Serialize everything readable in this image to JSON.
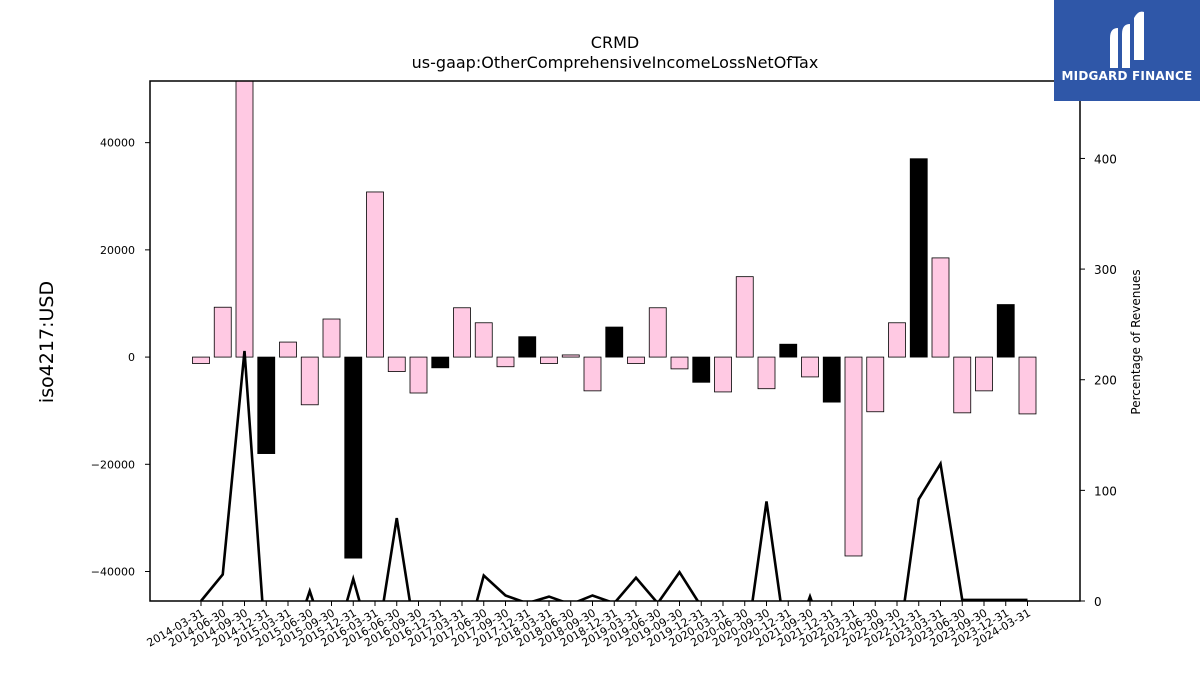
{
  "chart_data": {
    "type": "bar",
    "title": "CRMD",
    "subtitle": "us-gaap:OtherComprehensiveIncomeLossNetOfTax",
    "ylabel": "iso4217:USD",
    "ylabel_right": "Percentage of Revenues",
    "ylim": [
      -45500,
      51500
    ],
    "ylim_right": [
      0,
      470
    ],
    "yticks": [
      -40000,
      -20000,
      0,
      20000,
      40000
    ],
    "yticks_right": [
      0,
      100,
      200,
      300,
      400
    ],
    "categories": [
      "2014-03-31",
      "2014-06-30",
      "2014-09-30",
      "2014-12-31",
      "2015-03-31",
      "2015-06-30",
      "2015-09-30",
      "2015-12-31",
      "2016-03-31",
      "2016-06-30",
      "2016-09-30",
      "2016-12-31",
      "2017-03-31",
      "2017-06-30",
      "2017-09-30",
      "2017-12-31",
      "2018-03-31",
      "2018-06-30",
      "2018-09-30",
      "2018-12-31",
      "2019-03-31",
      "2019-06-30",
      "2019-09-30",
      "2019-12-31",
      "2020-03-31",
      "2020-06-30",
      "2020-09-30",
      "2020-12-31",
      "2021-09-30",
      "2021-12-31",
      "2022-03-31",
      "2022-06-30",
      "2022-09-30",
      "2022-12-31",
      "2023-03-31",
      "2023-06-30",
      "2023-09-30",
      "2023-12-31",
      "2024-03-31"
    ],
    "series": [
      {
        "type": "bar",
        "values": [
          -1200,
          9300,
          60000,
          -18000,
          2800,
          -8900,
          7100,
          -37500,
          30800,
          -2700,
          -6700,
          -2000,
          9200,
          6400,
          -1800,
          3800,
          -1200,
          400,
          -6300,
          5600,
          -1200,
          9200,
          -2200,
          -4700,
          -6500,
          15000,
          -5900,
          2400,
          -3700,
          -8400,
          -37100,
          -10200,
          6400,
          37000,
          18500,
          -10400,
          -6300,
          9800,
          -10600
        ],
        "colors": [
          "#ffc9e3",
          "#ffc9e3",
          "#ffc9e3",
          "#000000",
          "#ffc9e3",
          "#ffc9e3",
          "#ffc9e3",
          "#000000",
          "#ffc9e3",
          "#ffc9e3",
          "#ffc9e3",
          "#000000",
          "#ffc9e3",
          "#ffc9e3",
          "#ffc9e3",
          "#000000",
          "#ffc9e3",
          "#ffc9e3",
          "#ffc9e3",
          "#000000",
          "#ffc9e3",
          "#ffc9e3",
          "#ffc9e3",
          "#000000",
          "#ffc9e3",
          "#ffc9e3",
          "#ffc9e3",
          "#000000",
          "#ffc9e3",
          "#000000",
          "#ffc9e3",
          "#ffc9e3",
          "#ffc9e3",
          "#000000",
          "#ffc9e3",
          "#ffc9e3",
          "#ffc9e3",
          "#000000",
          "#ffc9e3"
        ]
      },
      {
        "type": "line",
        "axis": "right",
        "values": [
          0,
          24,
          226,
          -50,
          -50,
          9,
          -50,
          20,
          -50,
          75,
          -50,
          -50,
          -50,
          23,
          5,
          -2,
          4,
          -3,
          5,
          -2,
          21,
          -2,
          26,
          -5,
          -50,
          -50,
          90,
          -50,
          4,
          -50,
          -50,
          -50,
          -50,
          92,
          124,
          1,
          1,
          1,
          1
        ],
        "color": "#000000"
      }
    ]
  },
  "logo": {
    "text": "MIDGARD FINANCE",
    "background": "#2f57a8"
  }
}
